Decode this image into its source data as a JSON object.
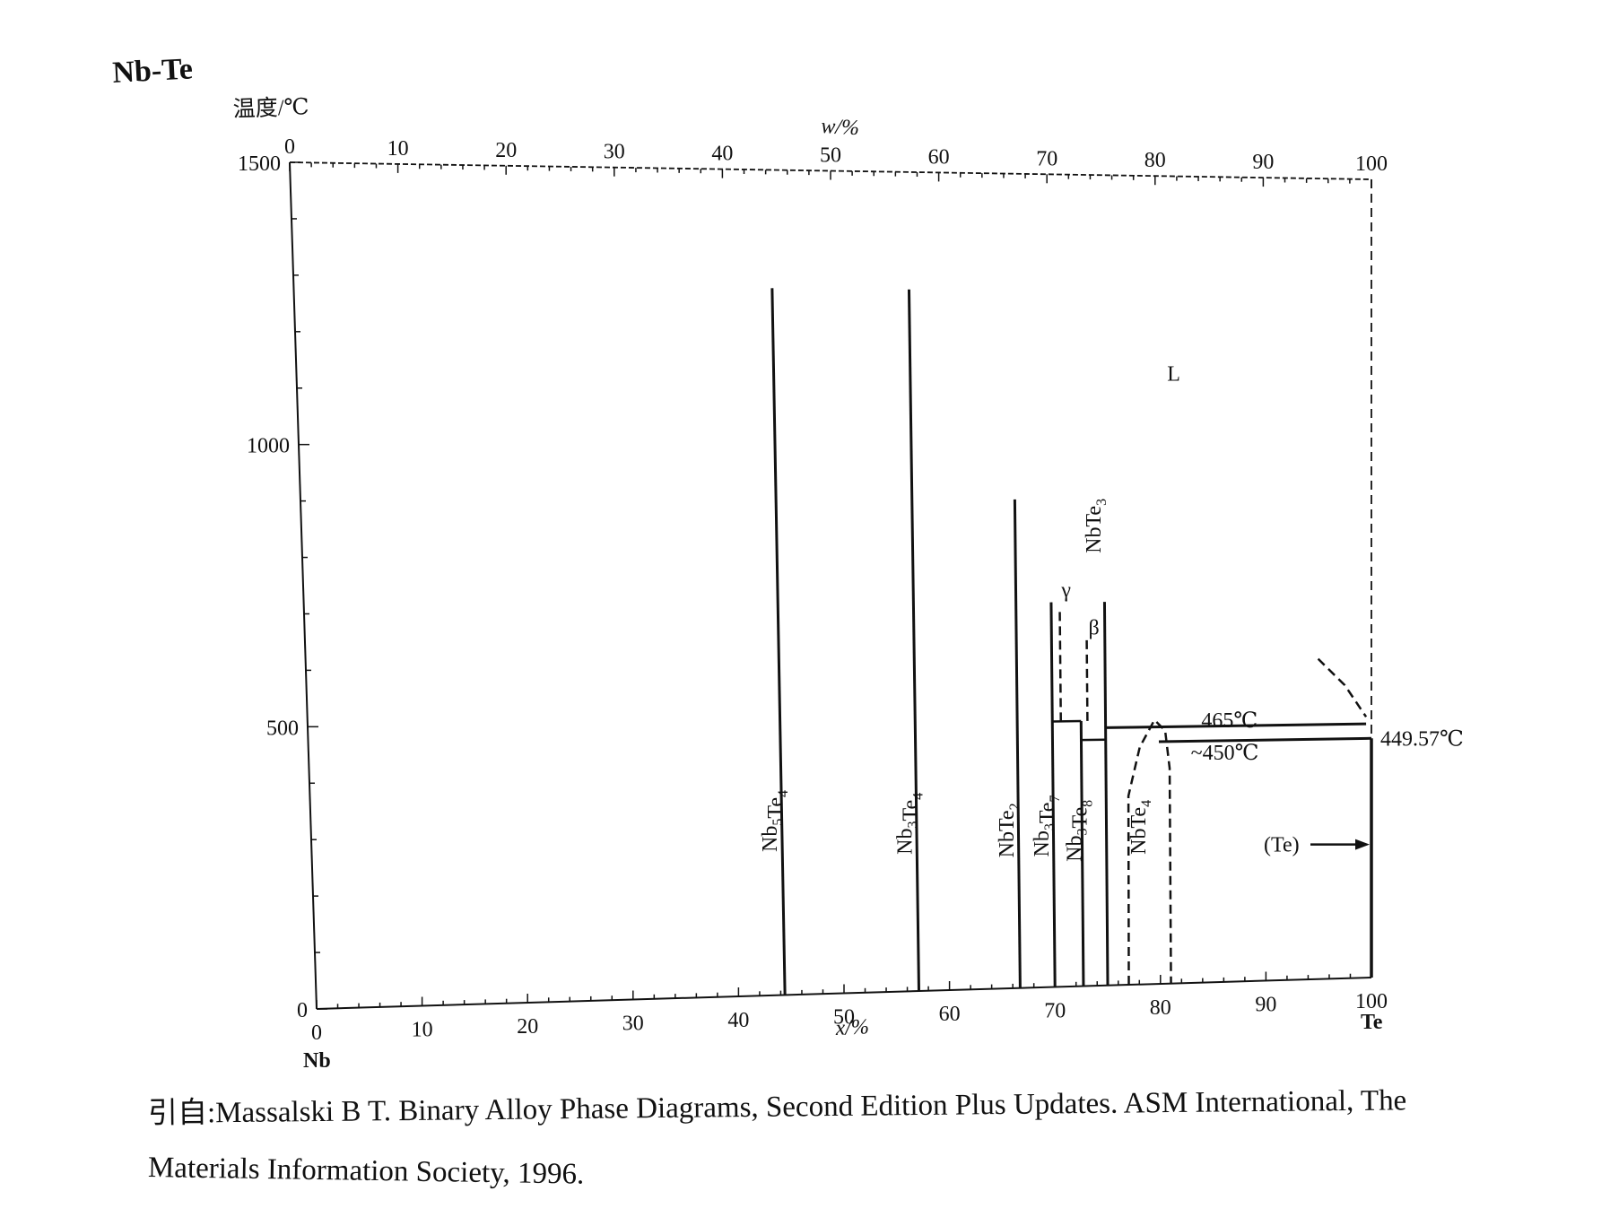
{
  "title": "Nb-Te",
  "citation": {
    "line1": "引自:Massalski B T.  Binary Alloy Phase Diagrams, Second Edition Plus Updates.  ASM International, The",
    "line2": "Materials Information Society, 1996."
  },
  "chart_data": {
    "type": "phase-diagram",
    "title": "Nb-Te",
    "ylabel": "温度/℃",
    "xlabel_bottom": "x/%",
    "xlabel_top": "w/%",
    "ylim": [
      0,
      1500
    ],
    "xlim": [
      0,
      100
    ],
    "y_ticks": [
      0,
      500,
      1000,
      1500
    ],
    "x_ticks_bottom": [
      0,
      10,
      20,
      30,
      40,
      50,
      60,
      70,
      80,
      90,
      100
    ],
    "x_ticks_top": [
      0,
      10,
      20,
      30,
      40,
      50,
      60,
      70,
      80,
      90,
      100
    ],
    "left_element": "Nb",
    "right_element": "Te",
    "phase_region_label": "L",
    "compounds": [
      {
        "name": "Nb₅Te₄",
        "x": 44.4,
        "y_top": 1285
      },
      {
        "name": "Nb₃Te₄",
        "x": 57.1,
        "y_top": 1285
      },
      {
        "name": "NbTe₂",
        "x": 66.7,
        "y_top": 900
      },
      {
        "name": "Nb₃Te₇",
        "x": 70.0,
        "y_top": 710
      },
      {
        "name": "Nb₃Te₈",
        "x": 72.7,
        "y_top": 490
      },
      {
        "name": "NbTe₃",
        "x": 75.0,
        "y_top": 710
      },
      {
        "name": "NbTe₄",
        "x": 80.0,
        "y_top": 500
      }
    ],
    "polymorphs": [
      {
        "name": "γ",
        "x": 70.8,
        "y_top": 700
      },
      {
        "name": "β",
        "x": 73.3,
        "y_top": 640
      }
    ],
    "isotherms": [
      {
        "label": "465℃",
        "y": 465
      },
      {
        "label": "~450℃",
        "y": 450
      },
      {
        "label": "449.57℃",
        "y": 449.57
      }
    ],
    "terminal_phase": "(Te)"
  }
}
